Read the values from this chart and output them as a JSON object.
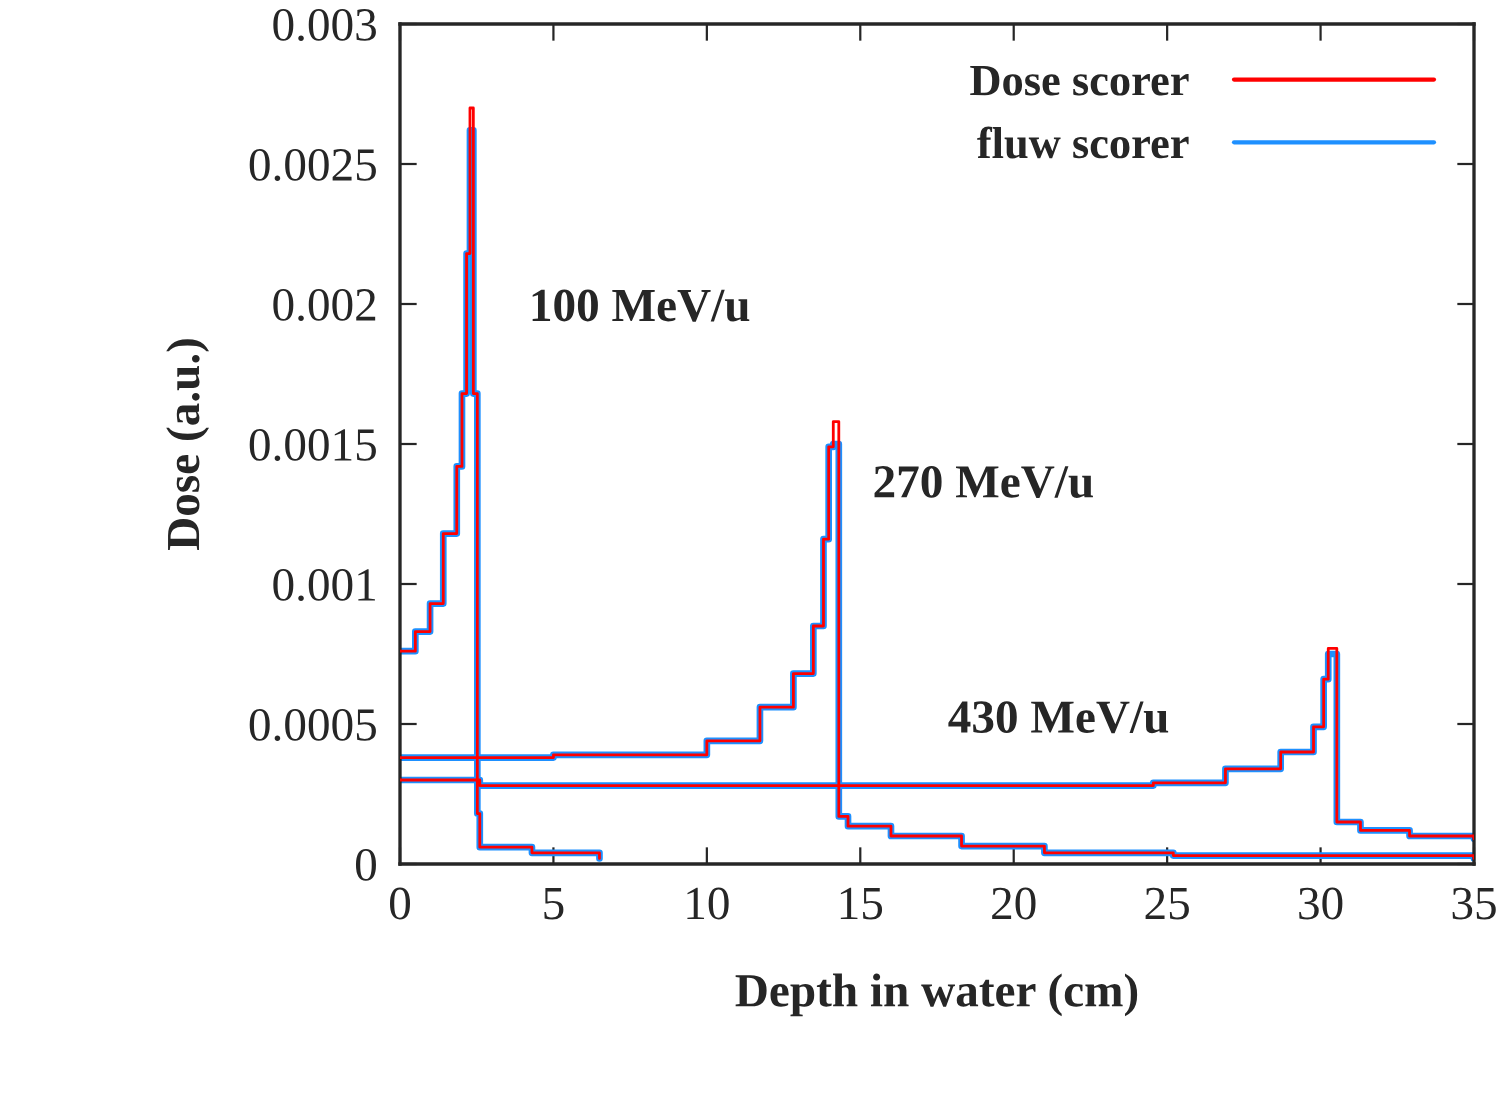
{
  "chart_data": {
    "type": "step",
    "xlabel": "Depth in water (cm)",
    "ylabel": "Dose (a.u.)",
    "xlim": [
      0,
      35
    ],
    "ylim": [
      0,
      0.003
    ],
    "xticks": [
      0,
      5,
      10,
      15,
      20,
      25,
      30,
      35
    ],
    "yticks": [
      0,
      0.0005,
      0.001,
      {
        "value": 0.0015,
        "label": "0.0015"
      },
      0.002,
      0.0025,
      0.003
    ],
    "grid": false,
    "legend": "top right",
    "line_style": "solid",
    "marker": "none",
    "annotations": [
      "100 MeV/u",
      "270 MeV/u",
      "430 MeV/u"
    ],
    "series": [
      {
        "name": "Dose scorer",
        "color": "#ff0000",
        "x": [
          0,
          0.5,
          0.98,
          1.41,
          1.85,
          2.02,
          2.17,
          2.28,
          2.39,
          2.52,
          2.6,
          4.3,
          6.5,
          null,
          0,
          5,
          10,
          11.73,
          12.82,
          13.47,
          13.8,
          13.97,
          14.12,
          14.3,
          14.6,
          16,
          18.3,
          21,
          25.2,
          35,
          null,
          0,
          2.6,
          22.2,
          24.55,
          26.9,
          28.7,
          29.77,
          30.1,
          30.25,
          30.53,
          30.64,
          31.3,
          32.9,
          35
        ],
        "values": [
          0.00076,
          0.00083,
          0.00093,
          0.00118,
          0.00142,
          0.00168,
          0.00218,
          0.0027,
          0.00168,
          0.00018,
          6e-05,
          4e-05,
          2e-05,
          null,
          0.00038,
          0.00039,
          0.00044,
          0.00056,
          0.00068,
          0.00085,
          0.00116,
          0.00149,
          0.00158,
          0.00017,
          0.000135,
          0.0001,
          6.4e-05,
          4e-05,
          3e-05,
          2e-05,
          null,
          0.0003,
          0.00028,
          0.00028,
          0.00029,
          0.00034,
          0.0004,
          0.00049,
          0.00066,
          0.00077,
          0.00015,
          0.00015,
          0.00012,
          0.0001,
          9e-05
        ]
      },
      {
        "name": "fluw scorer",
        "color": "#1e90ff",
        "x": [
          0,
          0.5,
          0.98,
          1.41,
          1.85,
          2.02,
          2.17,
          2.28,
          2.39,
          2.52,
          2.6,
          4.3,
          6.5,
          null,
          0,
          5,
          10,
          11.73,
          12.82,
          13.47,
          13.8,
          13.97,
          14.12,
          14.3,
          14.6,
          16,
          18.3,
          21,
          25.2,
          35,
          null,
          0,
          2.6,
          22.2,
          24.55,
          26.9,
          28.7,
          29.77,
          30.1,
          30.25,
          30.53,
          30.64,
          31.3,
          32.9,
          35
        ],
        "values": [
          0.00076,
          0.00083,
          0.00093,
          0.00118,
          0.00142,
          0.00168,
          0.00218,
          0.00262,
          0.00168,
          0.00018,
          6e-05,
          4e-05,
          2e-05,
          null,
          0.00038,
          0.00039,
          0.00044,
          0.00056,
          0.00068,
          0.00085,
          0.00116,
          0.00149,
          0.0015,
          0.00017,
          0.000135,
          0.0001,
          6.4e-05,
          4e-05,
          3e-05,
          2e-05,
          null,
          0.0003,
          0.00028,
          0.00028,
          0.00029,
          0.00034,
          0.0004,
          0.00049,
          0.00066,
          0.00075,
          0.00015,
          0.00015,
          0.00012,
          0.0001,
          9e-05
        ]
      }
    ]
  }
}
